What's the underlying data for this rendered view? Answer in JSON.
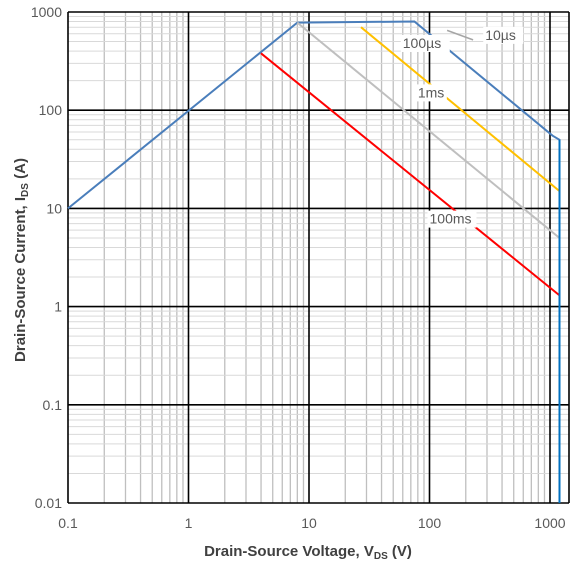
{
  "chart_data": {
    "type": "line",
    "title": "",
    "xlabel": {
      "main": "Drain-Source Voltage, V",
      "sub": "DS",
      "unit": " (V)"
    },
    "ylabel": {
      "main": "Drain-Source Current, I",
      "sub": "DS",
      "unit": " (A)"
    },
    "x_scale": "log",
    "y_scale": "log",
    "xlim": [
      0.1,
      1600
    ],
    "ylim": [
      0.01,
      1000
    ],
    "grid": true,
    "legend": "none",
    "x_ticks": [
      {
        "value": 0.1,
        "label": "0.1"
      },
      {
        "value": 1,
        "label": "1"
      },
      {
        "value": 10,
        "label": "10"
      },
      {
        "value": 100,
        "label": "100"
      },
      {
        "value": 1000,
        "label": "1000"
      }
    ],
    "y_ticks": [
      {
        "value": 0.01,
        "label": "0.01"
      },
      {
        "value": 0.1,
        "label": "0.1"
      },
      {
        "value": 1,
        "label": "1"
      },
      {
        "value": 10,
        "label": "10"
      },
      {
        "value": 100,
        "label": "100"
      },
      {
        "value": 1000,
        "label": "1000"
      }
    ],
    "series": [
      {
        "key": "10us",
        "color": "#4a7ebb",
        "x": [
          0.1,
          8,
          75,
          1050,
          1200,
          1200
        ],
        "y": [
          10,
          780,
          800,
          55,
          50,
          0.01
        ]
      },
      {
        "key": "100us",
        "color": "#ffc000",
        "x": [
          27,
          1200
        ],
        "y": [
          700,
          15
        ]
      },
      {
        "key": "1ms",
        "color": "#bfbfbf",
        "x": [
          8,
          1200
        ],
        "y": [
          780,
          5
        ]
      },
      {
        "key": "100ms",
        "color": "#ff0000",
        "x": [
          4,
          1200
        ],
        "y": [
          380,
          1.3
        ]
      },
      {
        "key": "dc",
        "color": "#0070c0",
        "x": [
          1200,
          1200
        ],
        "y": [
          50,
          0.01
        ]
      }
    ],
    "annotations": [
      {
        "text": "10µs",
        "x": 290,
        "y": 520
      },
      {
        "text": "100µs",
        "x": 60,
        "y": 430
      },
      {
        "text": "1ms",
        "x": 80,
        "y": 135
      },
      {
        "text": "100ms",
        "x": 100,
        "y": 7
      }
    ]
  }
}
